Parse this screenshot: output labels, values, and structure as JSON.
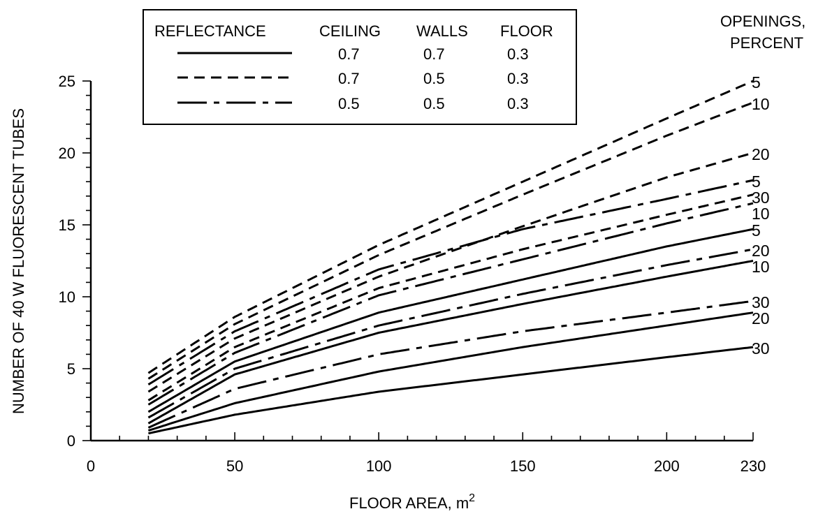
{
  "chart_data": {
    "type": "line",
    "xlabel": "FLOOR AREA, m",
    "xlabel_superscript": "2",
    "ylabel": "NUMBER OF 40 W FLUORESCENT TUBES",
    "xlim": [
      0,
      230
    ],
    "ylim": [
      0,
      25
    ],
    "x_ticks": [
      "0",
      "50",
      "100",
      "150",
      "200",
      "230"
    ],
    "y_ticks": [
      "0",
      "5",
      "10",
      "15",
      "20",
      "25"
    ],
    "openings_header": [
      "OPENINGS,",
      "PERCENT"
    ],
    "legend": {
      "headers": [
        "REFLECTANCE",
        "CEILING",
        "WALLS",
        "FLOOR"
      ],
      "rows": [
        {
          "style": "solid",
          "ceiling": "0.7",
          "walls": "0.7",
          "floor": "0.3"
        },
        {
          "style": "dashed",
          "ceiling": "0.7",
          "walls": "0.5",
          "floor": "0.3"
        },
        {
          "style": "dashdot",
          "ceiling": "0.5",
          "walls": "0.5",
          "floor": "0.3"
        }
      ]
    },
    "series": [
      {
        "style": "dashed",
        "label": "5",
        "x": [
          20,
          50,
          100,
          150,
          200,
          230
        ],
        "y": [
          4.7,
          8.6,
          13.6,
          18.0,
          22.4,
          25.0
        ]
      },
      {
        "style": "dashed",
        "label": "10",
        "x": [
          20,
          50,
          100,
          150,
          200,
          230
        ],
        "y": [
          4.3,
          8.1,
          12.9,
          17.1,
          21.2,
          23.5
        ]
      },
      {
        "style": "dashed",
        "label": "20",
        "x": [
          20,
          50,
          100,
          150,
          200,
          230
        ],
        "y": [
          3.4,
          7.1,
          11.4,
          14.9,
          18.3,
          20.0
        ]
      },
      {
        "style": "dashdot",
        "label": "5",
        "x": [
          20,
          50,
          100,
          150,
          200,
          230
        ],
        "y": [
          3.9,
          7.6,
          11.9,
          14.7,
          16.8,
          18.1
        ]
      },
      {
        "style": "dashed",
        "label": "30",
        "x": [
          20,
          50,
          100,
          150,
          200,
          230
        ],
        "y": [
          2.8,
          6.5,
          10.6,
          13.3,
          15.7,
          17.1
        ]
      },
      {
        "style": "dashdot",
        "label": "10",
        "x": [
          20,
          50,
          100,
          150,
          200,
          230
        ],
        "y": [
          2.5,
          6.1,
          10.1,
          12.6,
          15.1,
          16.5
        ]
      },
      {
        "style": "solid",
        "label": "5",
        "x": [
          20,
          50,
          100,
          150,
          200,
          230
        ],
        "y": [
          2.0,
          5.5,
          8.9,
          11.2,
          13.5,
          14.7
        ]
      },
      {
        "style": "dashdot",
        "label": "20",
        "x": [
          20,
          50,
          100,
          150,
          200,
          230
        ],
        "y": [
          1.6,
          5.0,
          8.0,
          10.2,
          12.2,
          13.3
        ]
      },
      {
        "style": "solid",
        "label": "10",
        "x": [
          20,
          50,
          100,
          150,
          200,
          230
        ],
        "y": [
          1.2,
          4.6,
          7.5,
          9.5,
          11.4,
          12.5
        ]
      },
      {
        "style": "dashdot",
        "label": "30",
        "x": [
          20,
          50,
          100,
          150,
          200,
          230
        ],
        "y": [
          0.9,
          3.6,
          6.0,
          7.6,
          8.9,
          9.7
        ]
      },
      {
        "style": "solid",
        "label": "20",
        "x": [
          20,
          50,
          100,
          150,
          200,
          230
        ],
        "y": [
          0.7,
          2.6,
          4.8,
          6.5,
          8.0,
          8.9
        ]
      },
      {
        "style": "solid",
        "label": "30",
        "x": [
          20,
          50,
          100,
          150,
          200,
          230
        ],
        "y": [
          0.5,
          1.8,
          3.4,
          4.6,
          5.8,
          6.5
        ]
      }
    ]
  }
}
